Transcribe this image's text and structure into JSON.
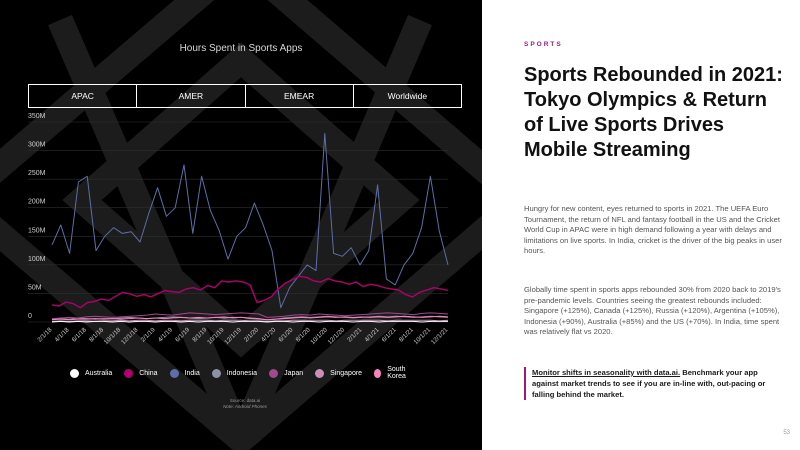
{
  "chart_data": {
    "type": "line",
    "title": "Hours Spent in Sports Apps",
    "tabs": [
      "APAC",
      "AMER",
      "EMEAR",
      "Worldwide"
    ],
    "active_tab": "APAC",
    "ylim": [
      0,
      350
    ],
    "yticks": [
      0,
      50,
      100,
      150,
      200,
      250,
      300,
      350
    ],
    "ytick_labels": [
      "0",
      "50M",
      "100M",
      "150M",
      "200M",
      "250M",
      "300M",
      "350M"
    ],
    "unit": "M hours",
    "x_labels": [
      "2/1/18",
      "4/1/18",
      "6/1/18",
      "8/1/18",
      "10/1/18",
      "12/1/18",
      "2/1/19",
      "4/1/19",
      "6/1/19",
      "8/1/19",
      "10/1/19",
      "12/1/19",
      "2/1/20",
      "4/1/20",
      "6/1/20",
      "8/1/20",
      "10/1/20",
      "12/1/20",
      "2/1/21",
      "4/1/21",
      "6/1/21",
      "8/1/21",
      "10/1/21",
      "12/1/21"
    ],
    "series": [
      {
        "name": "Australia",
        "color": "#ffffff",
        "values": [
          0,
          1,
          0,
          1,
          0,
          1,
          1,
          0,
          1,
          0,
          1,
          1,
          0,
          1,
          1,
          0,
          1,
          0,
          1,
          1,
          1,
          0,
          1,
          1,
          1,
          0,
          1,
          1,
          0,
          1,
          1,
          0,
          1,
          1,
          1,
          0,
          1,
          1,
          0,
          1,
          1,
          1,
          1,
          0,
          1,
          1,
          1
        ]
      },
      {
        "name": "China",
        "color": "#b0006c",
        "values": [
          30,
          28,
          35,
          32,
          25,
          34,
          36,
          40,
          38,
          45,
          52,
          49,
          45,
          48,
          44,
          50,
          55,
          53,
          52,
          58,
          60,
          56,
          64,
          60,
          72,
          70,
          72,
          70,
          65,
          34,
          38,
          44,
          58,
          68,
          74,
          80,
          78,
          72,
          70,
          76,
          72,
          70,
          66,
          70,
          62,
          66,
          64,
          60,
          58,
          56,
          48,
          44,
          52,
          56,
          60,
          58,
          55
        ]
      },
      {
        "name": "India",
        "color": "#5c6fa6",
        "values": [
          135,
          170,
          120,
          245,
          255,
          125,
          150,
          165,
          155,
          158,
          140,
          190,
          235,
          185,
          200,
          275,
          155,
          255,
          195,
          160,
          110,
          150,
          165,
          208,
          170,
          125,
          25,
          60,
          80,
          100,
          90,
          330,
          120,
          115,
          130,
          100,
          125,
          240,
          75,
          65,
          100,
          120,
          165,
          255,
          160,
          100
        ]
      },
      {
        "name": "Indonesia",
        "color": "#8a93a8",
        "values": [
          5,
          6,
          5,
          7,
          6,
          5,
          6,
          6,
          7,
          8,
          7,
          6,
          7,
          8,
          9,
          8,
          7,
          6,
          7,
          8,
          9,
          7,
          8,
          6,
          5,
          4,
          5,
          7,
          8,
          9,
          8,
          9,
          10,
          9,
          8,
          7,
          8,
          9,
          10,
          9,
          10,
          9,
          8,
          9,
          10,
          9,
          8
        ]
      },
      {
        "name": "Japan",
        "color": "#a04a8a",
        "values": [
          6,
          7,
          8,
          7,
          9,
          10,
          9,
          8,
          9,
          10,
          11,
          12,
          14,
          13,
          12,
          14,
          16,
          15,
          14,
          13,
          14,
          15,
          16,
          15,
          14,
          8,
          9,
          10,
          12,
          13,
          12,
          14,
          13,
          12,
          11,
          12,
          13,
          14,
          15,
          16,
          15,
          14,
          13,
          15,
          16,
          15,
          14
        ]
      },
      {
        "name": "Singapore",
        "color": "#c790b6",
        "values": [
          1,
          2,
          1,
          2,
          2,
          1,
          2,
          2,
          3,
          2,
          3,
          3,
          2,
          3,
          3,
          2,
          3,
          3,
          3,
          2,
          3,
          3,
          3,
          2,
          2,
          1,
          2,
          2,
          3,
          3,
          3,
          3,
          3,
          2,
          3,
          3,
          3,
          3,
          3,
          2,
          3,
          3,
          3,
          3,
          3,
          2,
          3
        ]
      },
      {
        "name": "South Korea",
        "color": "#ff7fc0",
        "values": [
          4,
          5,
          4,
          5,
          5,
          6,
          5,
          6,
          5,
          6,
          7,
          6,
          7,
          6,
          7,
          8,
          7,
          8,
          7,
          8,
          7,
          8,
          8,
          7,
          6,
          4,
          5,
          6,
          7,
          8,
          7,
          8,
          9,
          8,
          9,
          8,
          9,
          8,
          9,
          8,
          9,
          10,
          9,
          8,
          9,
          10,
          9
        ]
      }
    ],
    "legend_position": "bottom",
    "source": [
      "Source: data.ai",
      "Note: Android Phones"
    ]
  },
  "right": {
    "kicker": "SPORTS",
    "headline": "Sports Rebounded in 2021: Tokyo Olympics & Return of Live Sports Drives Mobile Streaming",
    "paragraph1": "Hungry for new content, eyes returned to sports in 2021. The UEFA Euro Tournament, the return of NFL and fantasy football in the US and the Cricket World Cup in APAC were in high demand following a year with delays and limitations on live sports. In India, cricket is the driver of the big peaks in user hours.",
    "paragraph2": "Globally time spent in sports apps rebounded 30% from 2020 back to 2019's pre-pandemic levels. Countries seeing the greatest rebounds included: Singapore (+125%), Canada (+125%), Russia (+120%), Argentina (+105%), Indonesia (+90%), Australia (+85%) and the US (+70%). In India, time spent was relatively flat vs 2020.",
    "cta_link": "Monitor shifts in seasonality with data.ai.",
    "cta_rest": " Benchmark your app against market trends to see if you are in-line with, out-pacing or falling behind the market.",
    "accent": "#9b1a7a"
  },
  "page_number": "53"
}
